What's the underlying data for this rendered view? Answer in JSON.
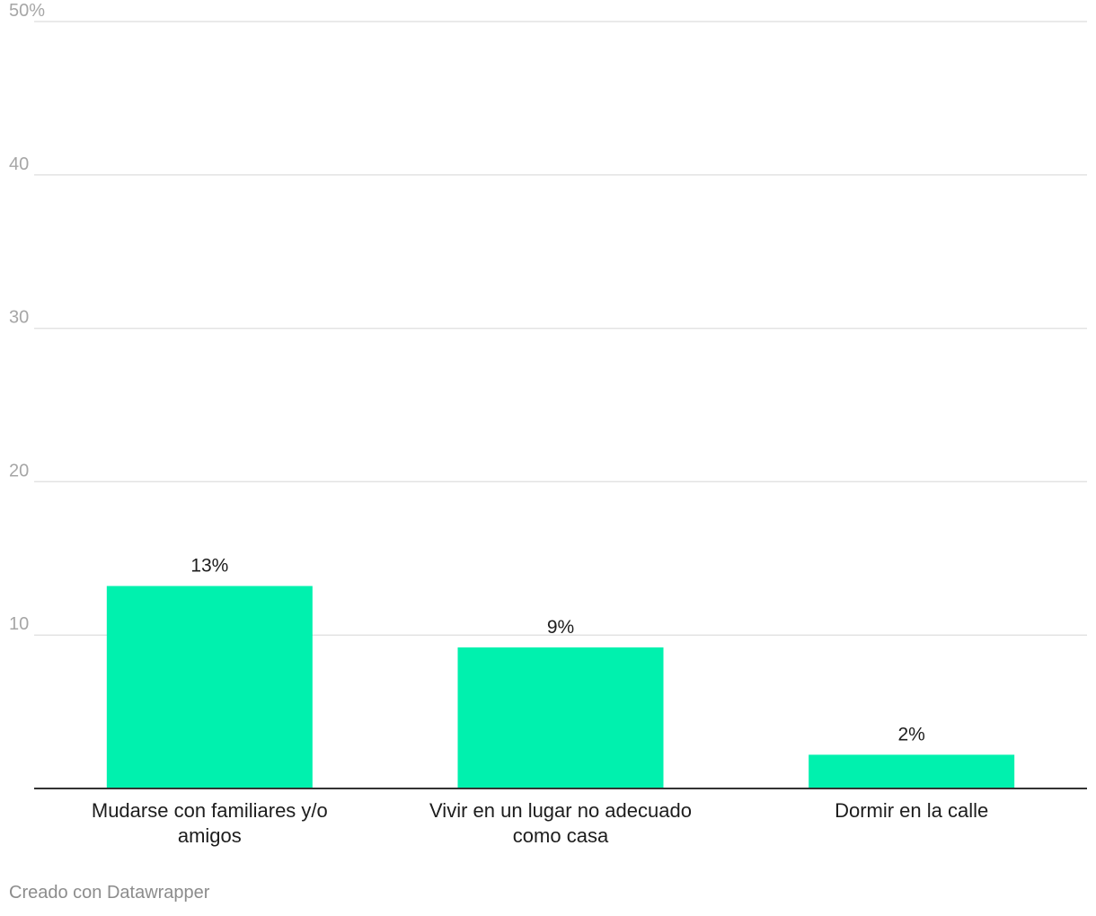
{
  "chart_data": {
    "type": "bar",
    "categories": [
      [
        "Mudarse con familiares y/o",
        "amigos"
      ],
      [
        "Vivir en un lugar no adecuado",
        "como casa"
      ],
      [
        "Dormir en la calle"
      ]
    ],
    "values": [
      13.2,
      9.2,
      2.2
    ],
    "value_labels": [
      "13%",
      "9%",
      "2%"
    ],
    "ylim": [
      0,
      50
    ],
    "yticks": [
      10,
      20,
      30,
      40,
      50
    ],
    "ytick_labels": [
      "10",
      "20",
      "30",
      "40",
      "50%"
    ],
    "grid": true,
    "title": "",
    "xlabel": "",
    "ylabel": "",
    "colors": {
      "bar": "#00f1ae",
      "grid": "#e3e3e3",
      "axis": "#333333"
    }
  },
  "footer": {
    "credit": "Creado con Datawrapper"
  }
}
